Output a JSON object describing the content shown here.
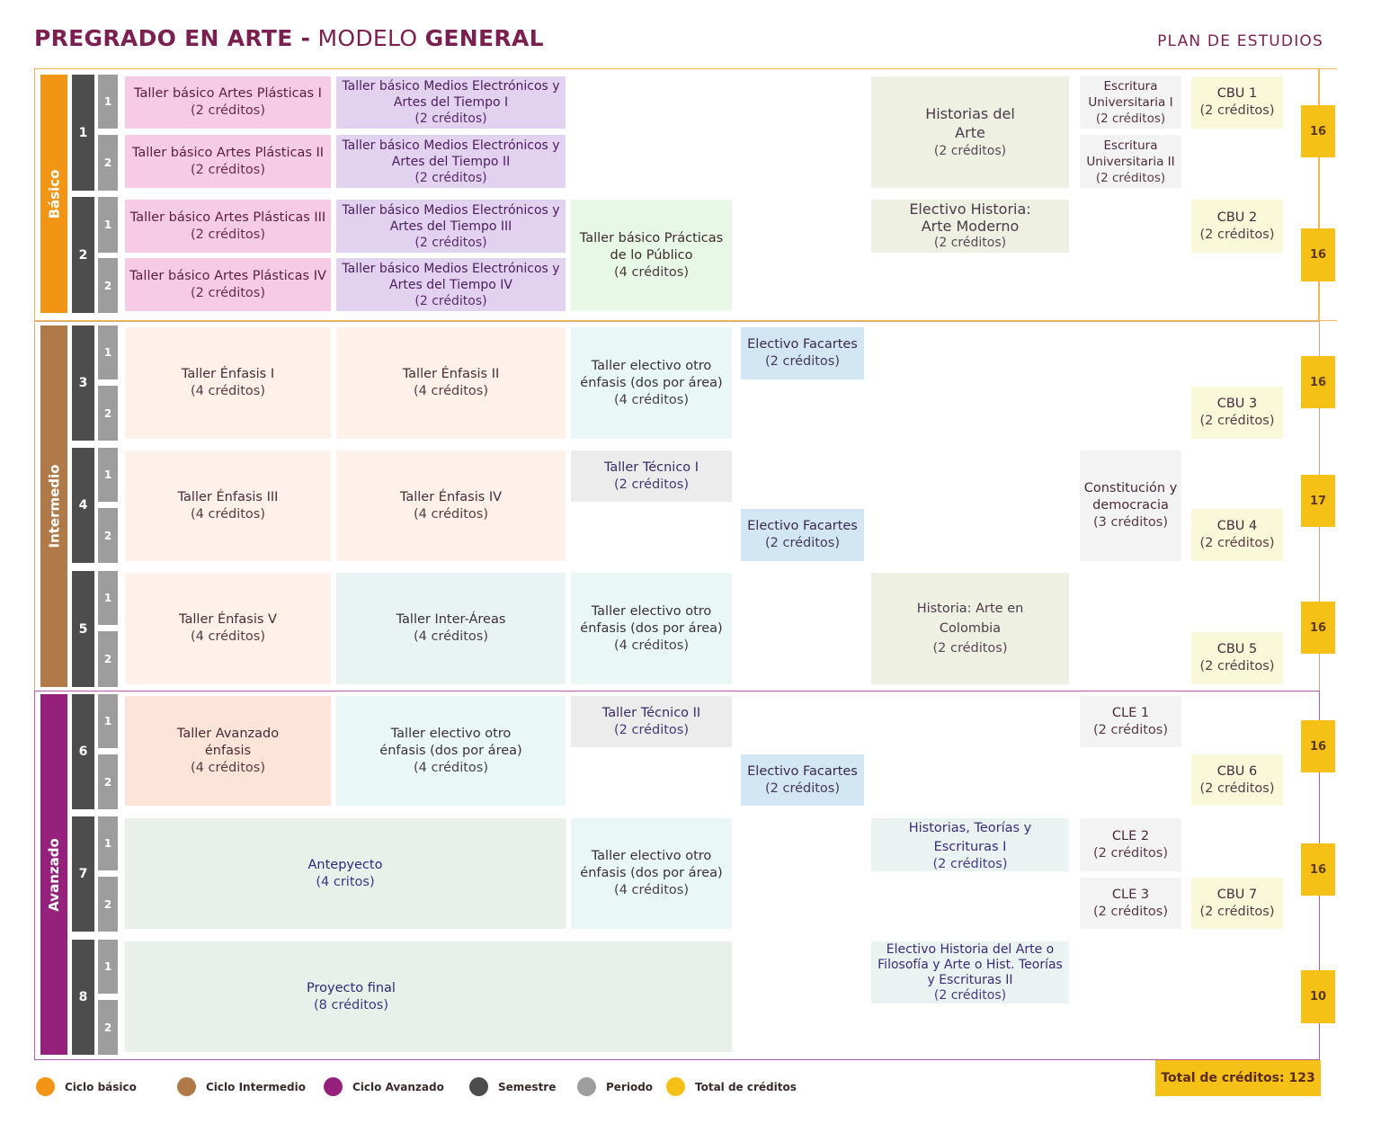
{
  "header": {
    "title_part1": "PREGRADO EN ARTE -",
    "title_part2": "MODELO",
    "title_part3": "GENERAL",
    "right_label": "PLAN DE ESTUDIOS"
  },
  "colors": {
    "basico": "#f39514",
    "intermedio": "#b07a48",
    "avanzado": "#96217c",
    "semestre": "#4d4d4d",
    "periodo": "#9d9d9d",
    "creditos": "#f5c116"
  },
  "cycles": {
    "basico": "Básico",
    "intermedio": "Intermedio",
    "avanzado": "Avanzado"
  },
  "semesters": [
    "1",
    "2",
    "3",
    "4",
    "5",
    "6",
    "7",
    "8"
  ],
  "periods": [
    "1",
    "2"
  ],
  "courses": {
    "c1": {
      "n": "Taller básico Artes Plásticas I",
      "c": "(2 créditos)"
    },
    "c2": {
      "n": "Taller básico Medios Electrónicos y Artes del Tiempo I",
      "c": "(2 créditos)"
    },
    "c3": {
      "n": "Historias del Arte",
      "c": "(2 créditos)"
    },
    "c4": {
      "n": "Escritura Universitaria I",
      "c": "(2 créditos)"
    },
    "c5": {
      "n": "CBU 1",
      "c": "(2 créditos)"
    },
    "c6": {
      "n": "Taller básico Artes Plásticas II",
      "c": "(2 créditos)"
    },
    "c7": {
      "n": "Taller básico Medios Electrónicos y Artes del Tiempo II",
      "c": "(2 créditos)"
    },
    "c8": {
      "n": "Escritura Universitaria II",
      "c": "(2 créditos)"
    },
    "c9": {
      "n": "Taller básico Artes Plásticas III",
      "c": "(2 créditos)"
    },
    "c10": {
      "n": "Taller básico Medios Electrónicos y Artes del Tiempo III",
      "c": "(2 créditos)"
    },
    "c11": {
      "n": "Taller básico Prácticas de lo Público",
      "c": "(4 créditos)"
    },
    "c12": {
      "n": "Electivo Historia: Arte Moderno",
      "c": "(2 créditos)"
    },
    "c13": {
      "n": "CBU 2",
      "c": "(2 créditos)"
    },
    "c14": {
      "n": "Taller básico Artes Plásticas IV",
      "c": "(2 créditos)"
    },
    "c15": {
      "n": "Taller básico Medios Electrónicos y Artes del Tiempo IV",
      "c": "(2 créditos)"
    },
    "c16": {
      "n": "Taller Énfasis I",
      "c": "(4 créditos)"
    },
    "c17": {
      "n": "Taller Énfasis II",
      "c": "(4 créditos)"
    },
    "c18": {
      "n": "Taller electivo otro énfasis (dos por área)",
      "c": "(4 créditos)"
    },
    "c19": {
      "n": "Electivo Facartes",
      "c": "(2 créditos)"
    },
    "c20": {
      "n": "CBU 3",
      "c": "(2 créditos)"
    },
    "c21": {
      "n": "Taller Énfasis III",
      "c": "(4 créditos)"
    },
    "c22": {
      "n": "Taller Énfasis IV",
      "c": "(4 créditos)"
    },
    "c23": {
      "n": "Taller Técnico I",
      "c": "(2 créditos)"
    },
    "c24": {
      "n": "Constitución y democracia",
      "c": "(3 créditos)"
    },
    "c25": {
      "n": "Electivo Facartes",
      "c": "(2 créditos)"
    },
    "c26": {
      "n": "CBU 4",
      "c": "(2 créditos)"
    },
    "c27": {
      "n": "Taller Énfasis V",
      "c": "(4 créditos)"
    },
    "c28": {
      "n": "Taller Inter-Áreas",
      "c": "(4 créditos)"
    },
    "c29": {
      "n": "Taller electivo otro énfasis (dos por área)",
      "c": "(4 créditos)"
    },
    "c30": {
      "n": "Historia: Arte en Colombia",
      "c": "(2 créditos)"
    },
    "c31": {
      "n": "CBU 5",
      "c": "(2 créditos)"
    },
    "c32": {
      "n": "Taller Avanzado énfasis",
      "c": "(4 créditos)"
    },
    "c33": {
      "n": "Taller electivo otro énfasis (dos por área)",
      "c": "(4 créditos)"
    },
    "c34": {
      "n": "Taller Técnico II",
      "c": "(2 créditos)"
    },
    "c35": {
      "n": "CLE 1",
      "c": "(2 créditos)"
    },
    "c36": {
      "n": "Electivo Facartes",
      "c": "(2 créditos)"
    },
    "c37": {
      "n": "CBU 6",
      "c": "(2 créditos)"
    },
    "c38": {
      "n": "Antepyecto",
      "c": "(4 critos)"
    },
    "c39": {
      "n": "Taller electivo otro énfasis (dos por área)",
      "c": "(4 créditos)"
    },
    "c40": {
      "n": "Historias, Teorías y Escrituras I",
      "c": "(2 créditos)"
    },
    "c41": {
      "n": "CLE 2",
      "c": "(2 créditos)"
    },
    "c42": {
      "n": "CLE 3",
      "c": "(2 créditos)"
    },
    "c43": {
      "n": "CBU 7",
      "c": "(2 créditos)"
    },
    "c44": {
      "n": "Proyecto final",
      "c": "(8 créditos)"
    },
    "c45": {
      "n": "Electivo Historia del Arte o Filosofía y Arte o Hist. Teorías y Escrituras II",
      "c": "(2 créditos)"
    }
  },
  "totals": [
    "16",
    "16",
    "16",
    "17",
    "16",
    "16",
    "16",
    "10"
  ],
  "grand_total": "Total de créditos: 123",
  "legend": [
    "Ciclo básico",
    "Ciclo Intermedio",
    "Ciclo Avanzado",
    "Semestre",
    "Periodo",
    "Total de créditos"
  ]
}
